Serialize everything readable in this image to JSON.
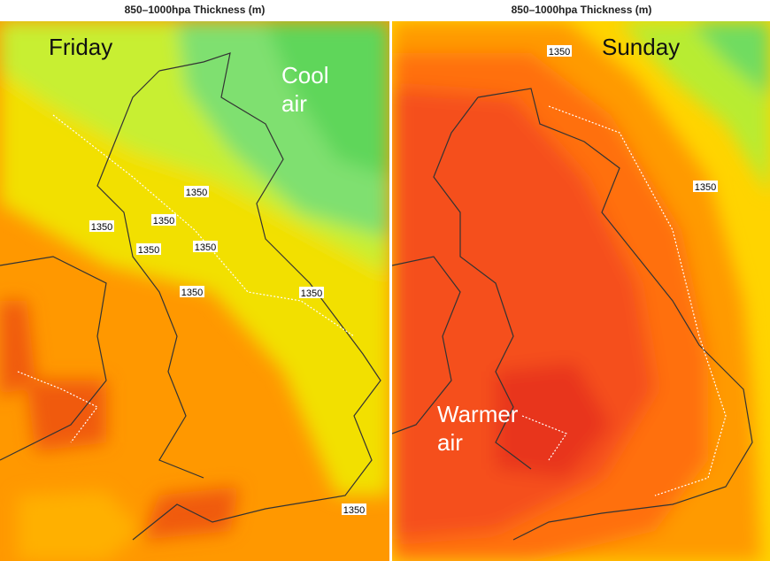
{
  "panels": [
    {
      "title": "850–1000hpa Thickness (m)",
      "day": "Friday",
      "annotation": [
        "Cool",
        "air"
      ],
      "contour_labels": [
        "1350",
        "1350",
        "1350",
        "1350",
        "1350",
        "1350",
        "1350",
        "1350"
      ]
    },
    {
      "title": "850–1000hpa Thickness (m)",
      "day": "Sunday",
      "annotation": [
        "Warmer",
        "air"
      ],
      "contour_labels": [
        "1350",
        "1350"
      ]
    }
  ]
}
